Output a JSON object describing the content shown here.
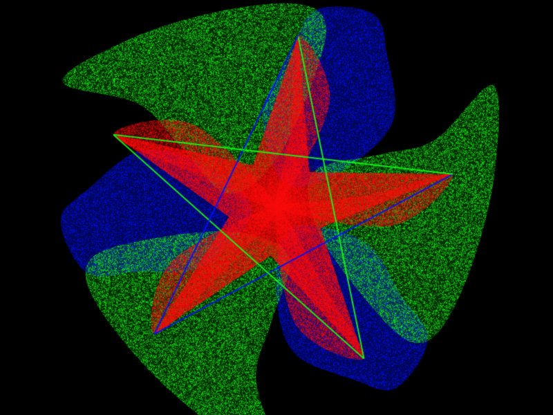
{
  "scene": {
    "description_tags": [
      "fractal",
      "particle-art",
      "three-fold-symmetry"
    ],
    "background_color": "#000000",
    "layers": [
      {
        "name": "blue",
        "color": "#0010ff"
      },
      {
        "name": "green",
        "color": "#12ff12"
      },
      {
        "name": "red",
        "color": "#ff0a0a"
      }
    ]
  }
}
